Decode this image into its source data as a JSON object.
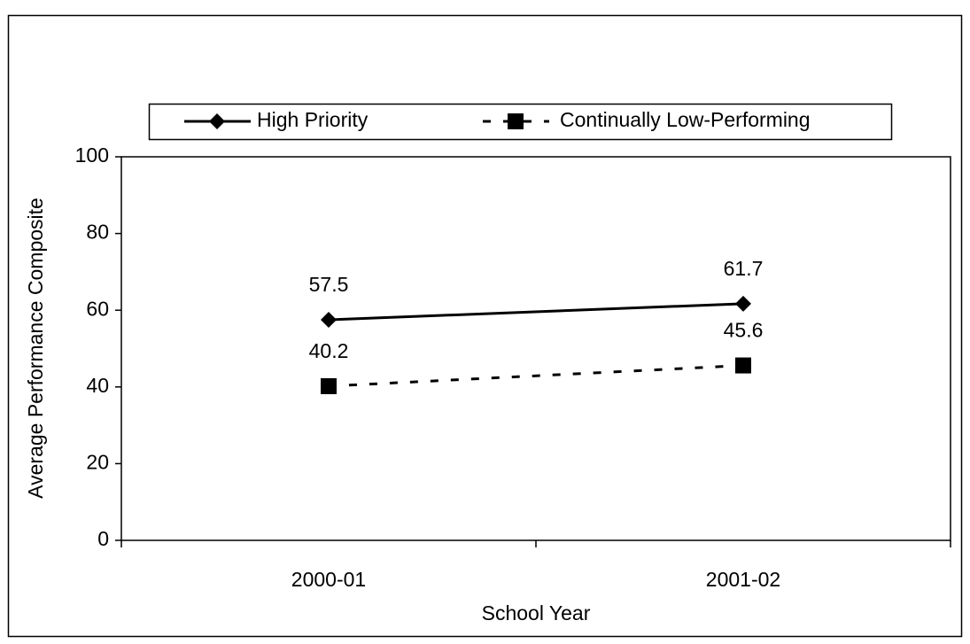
{
  "chart_data": {
    "type": "line",
    "x_label": "School Year",
    "y_label": "Average Performance Composite",
    "categories": [
      "2000-01",
      "2001-02"
    ],
    "series": [
      {
        "name": "High Priority",
        "color": "#000000",
        "line_style": "solid",
        "marker": "diamond",
        "values": [
          57.5,
          61.7
        ]
      },
      {
        "name": "Continually Low-Performing",
        "color": "#000000",
        "line_style": "dashed",
        "marker": "square",
        "values": [
          40.2,
          45.6
        ]
      }
    ],
    "ylim": [
      0,
      100
    ],
    "yticks": [
      0,
      20,
      40,
      60,
      80,
      100
    ],
    "grid": false,
    "legend": "top"
  }
}
